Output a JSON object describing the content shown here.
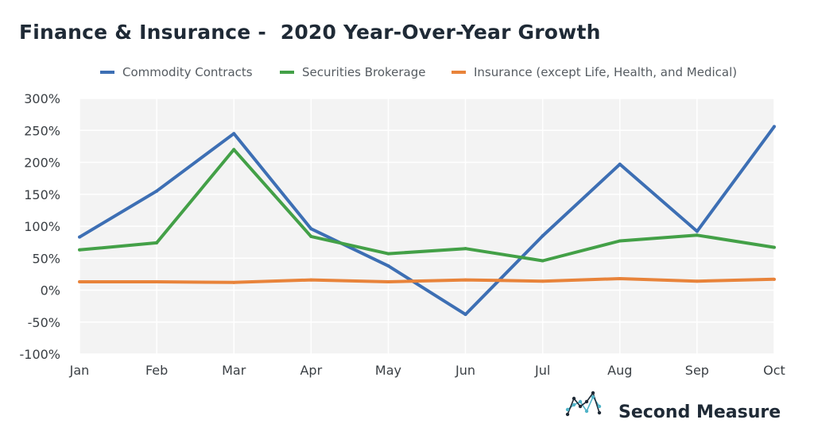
{
  "chart_data": {
    "type": "line",
    "title": "Finance & Insurance -  2020 Year-Over-Year Growth",
    "xlabel": "",
    "ylabel": "",
    "categories": [
      "Jan",
      "Feb",
      "Mar",
      "Apr",
      "May",
      "Jun",
      "Jul",
      "Aug",
      "Sep",
      "Oct"
    ],
    "ylim": [
      -100,
      300
    ],
    "yticks": [
      300,
      250,
      200,
      150,
      100,
      50,
      0,
      -50,
      -100
    ],
    "ytick_labels": [
      "300%",
      "250%",
      "200%",
      "150%",
      "100%",
      "50%",
      "0%",
      "-50%",
      "-100%"
    ],
    "grid": true,
    "legend_position": "top",
    "series": [
      {
        "name": "Commodity Contracts",
        "color": "#3d6fb4",
        "values": [
          83,
          155,
          245,
          96,
          38,
          -38,
          85,
          197,
          92,
          256
        ]
      },
      {
        "name": "Securities Brokerage",
        "color": "#43a047",
        "values": [
          63,
          74,
          220,
          84,
          57,
          65,
          46,
          77,
          86,
          67
        ]
      },
      {
        "name": "Insurance (except Life, Health, and Medical)",
        "color": "#e8833a",
        "values": [
          13,
          13,
          12,
          16,
          13,
          16,
          14,
          18,
          14,
          17
        ]
      }
    ]
  },
  "branding": {
    "name": "Second Measure",
    "logo_icon": "line-chart-logo-icon",
    "logo_colors": [
      "#1f2a36",
      "#4fb3c8"
    ]
  }
}
